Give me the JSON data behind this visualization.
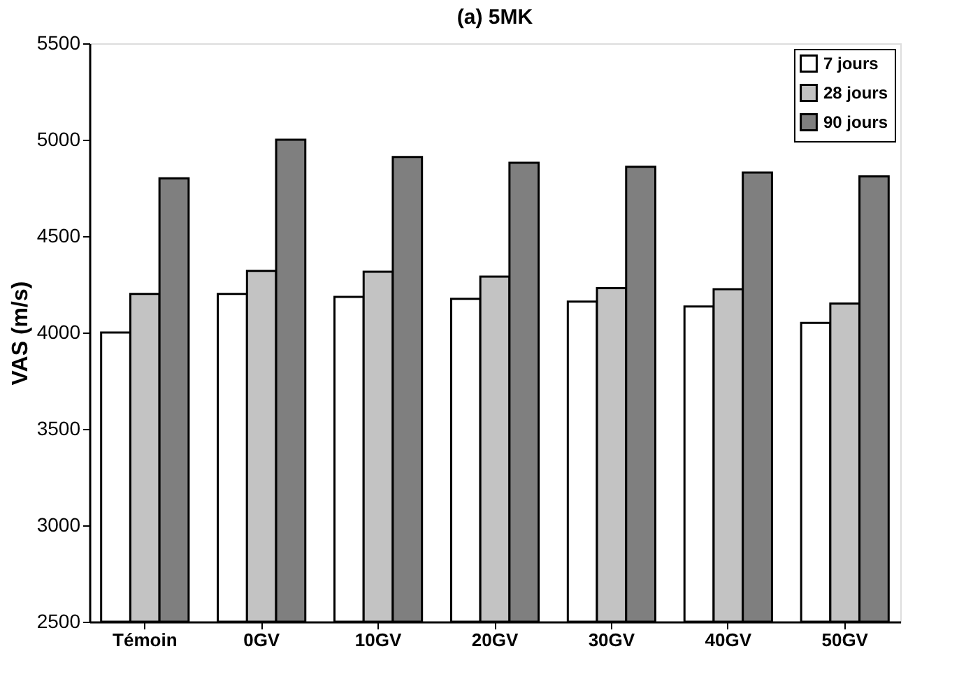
{
  "chart_data": {
    "type": "bar",
    "title": "(a) 5MK",
    "ylabel": "VAS (m/s)",
    "categories": [
      "Témoin",
      "0GV",
      "10GV",
      "20GV",
      "30GV",
      "40GV",
      "50GV"
    ],
    "series": [
      {
        "name": "7 jours",
        "color": "#ffffff",
        "values": [
          4000,
          4200,
          4185,
          4175,
          4160,
          4135,
          4050
        ]
      },
      {
        "name": "28 jours",
        "color": "#c3c3c3",
        "values": [
          4200,
          4320,
          4315,
          4290,
          4230,
          4225,
          4150
        ]
      },
      {
        "name": "90 jours",
        "color": "#7f7f7f",
        "values": [
          4800,
          5000,
          4910,
          4880,
          4860,
          4830,
          4810
        ]
      }
    ],
    "ylim": [
      2500,
      5500
    ],
    "yticks": [
      2500,
      3000,
      3500,
      4000,
      4500,
      5000,
      5500
    ],
    "grid": false,
    "legend": "top right"
  }
}
